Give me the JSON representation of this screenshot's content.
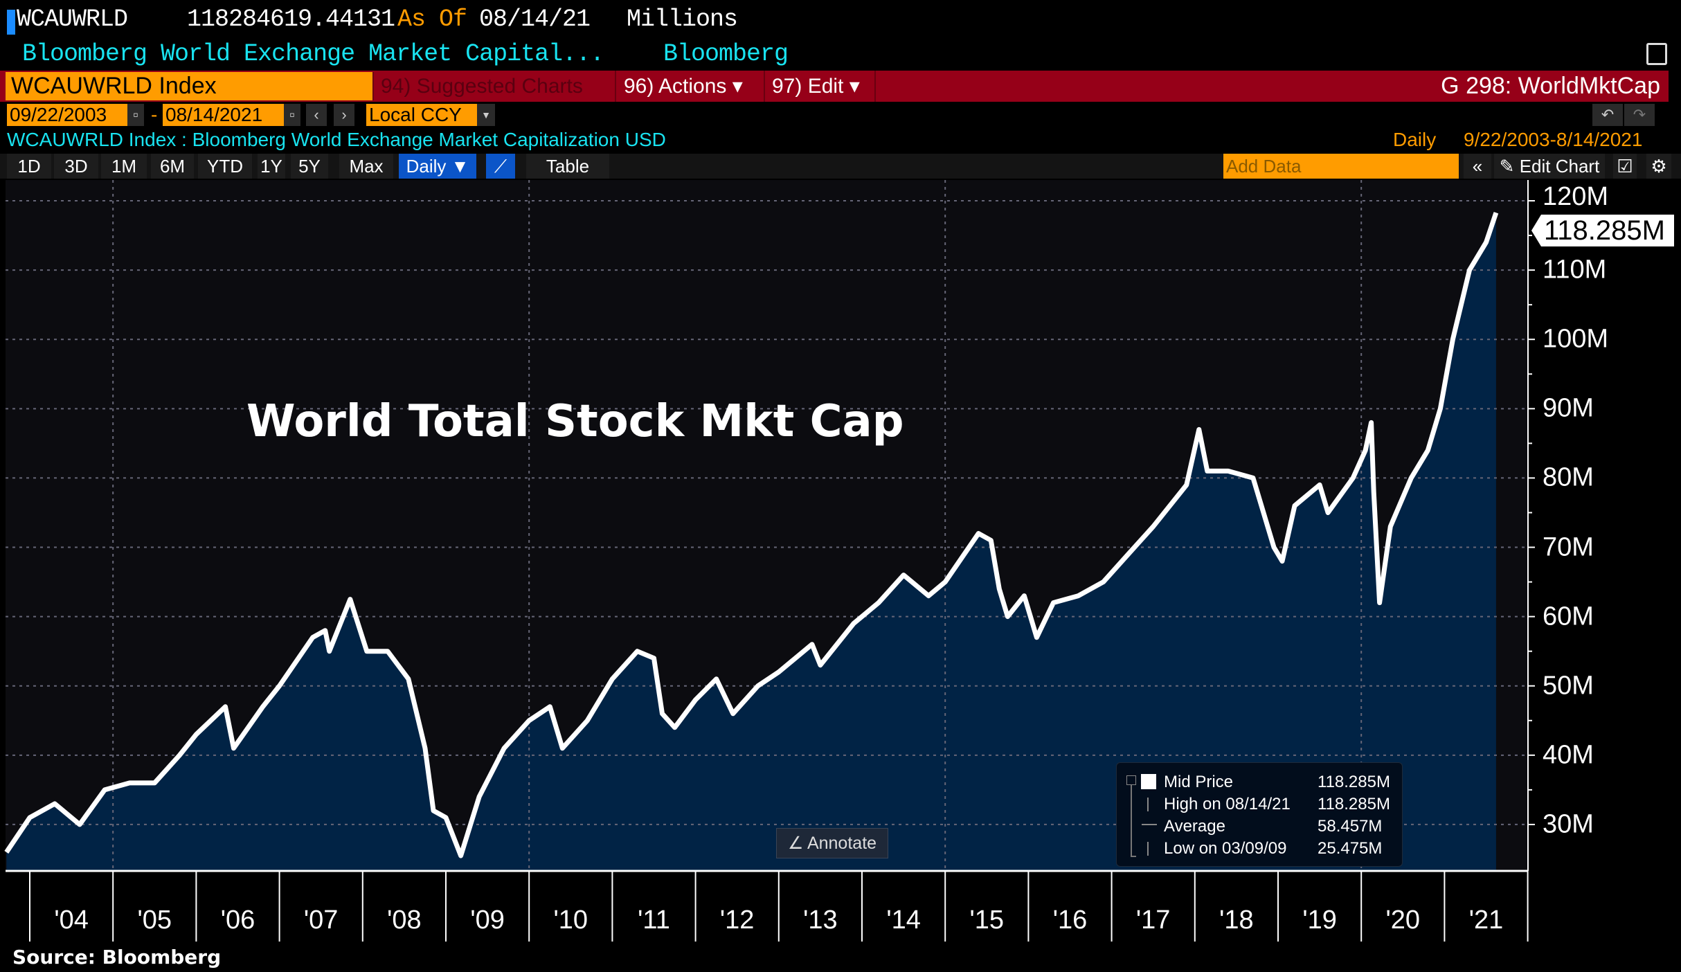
{
  "header": {
    "ticker": "WCAUWRLD",
    "value": "118284619.44131",
    "as_of_label": "As Of",
    "as_of_date": "08/14/21",
    "units": "Millions",
    "name": "Bloomberg World Exchange Market Capital...",
    "source": "Bloomberg"
  },
  "command_bar": {
    "security": "WCAUWRLD Index",
    "suggested": "94) Suggested Charts",
    "actions": "96) Actions ▾",
    "edit": "97) Edit ▾",
    "chart_id": "G 298: WorldMktCap"
  },
  "date_bar": {
    "start": "09/22/2003",
    "separator": "-",
    "end": "08/14/2021",
    "currency": "Local CCY"
  },
  "subtitle": {
    "left": "WCAUWRLD Index : Bloomberg World Exchange Market Capitalization USD",
    "frequency": "Daily",
    "range": "9/22/2003-8/14/2021"
  },
  "toolbar": {
    "periods": [
      "1D",
      "3D",
      "1M",
      "6M",
      "YTD",
      "1Y",
      "5Y",
      "Max"
    ],
    "frequency": "Daily ▼",
    "table": "Table",
    "add_data_placeholder": "Add Data",
    "edit_chart": "Edit Chart"
  },
  "annotate_label": "Annotate",
  "footer_source": "Source: Bloomberg",
  "colors": {
    "line": "#ffffff",
    "area": "#012345",
    "plot_bg": "#0c0c10",
    "accent_orange": "#ff9c00",
    "bar_red": "#960018",
    "cyan": "#19e3f0"
  },
  "chart_data": {
    "type": "area",
    "title": "World Total Stock Mkt Cap",
    "xlim": [
      2003.72,
      2022.0
    ],
    "ylim": [
      23.3,
      123
    ],
    "yticks": [
      30,
      40,
      50,
      60,
      70,
      80,
      90,
      100,
      110,
      120
    ],
    "ytick_labels": [
      "30M",
      "40M",
      "50M",
      "60M",
      "70M",
      "80M",
      "90M",
      "100M",
      "110M",
      "120M"
    ],
    "xtick_labels": [
      "'04",
      "'05",
      "'06",
      "'07",
      "'08",
      "'09",
      "'10",
      "'11",
      "'12",
      "'13",
      "'14",
      "'15",
      "'16",
      "'17",
      "'18",
      "'19",
      "'20",
      "'21"
    ],
    "grid": true,
    "last_value_label": "118.285M",
    "series": [
      {
        "x": [
          2003.72,
          2004.0,
          2004.3,
          2004.6,
          2004.9,
          2005.2,
          2005.5,
          2005.8,
          2006.0,
          2006.35,
          2006.45,
          2006.8,
          2007.0,
          2007.4,
          2007.55,
          2007.6,
          2007.85,
          2008.05,
          2008.3,
          2008.55,
          2008.75,
          2008.85,
          2009.0,
          2009.18,
          2009.4,
          2009.7,
          2010.0,
          2010.25,
          2010.4,
          2010.7,
          2011.0,
          2011.3,
          2011.5,
          2011.6,
          2011.75,
          2012.0,
          2012.25,
          2012.45,
          2012.75,
          2013.0,
          2013.4,
          2013.5,
          2013.9,
          2014.2,
          2014.5,
          2014.8,
          2015.0,
          2015.4,
          2015.55,
          2015.65,
          2015.75,
          2015.95,
          2016.1,
          2016.3,
          2016.6,
          2016.9,
          2017.2,
          2017.5,
          2017.9,
          2018.05,
          2018.15,
          2018.4,
          2018.7,
          2018.95,
          2019.05,
          2019.2,
          2019.5,
          2019.6,
          2019.9,
          2020.05,
          2020.12,
          2020.15,
          2020.22,
          2020.35,
          2020.6,
          2020.8,
          2020.95,
          2021.1,
          2021.3,
          2021.5,
          2021.62
        ],
        "y": [
          26,
          31,
          33,
          30,
          35,
          36,
          36,
          40,
          43,
          47,
          41,
          47,
          50,
          57,
          58,
          55,
          62.5,
          55,
          55,
          51,
          41,
          32,
          31,
          25.5,
          34,
          41,
          45,
          47,
          41,
          45,
          51,
          55,
          54,
          46,
          44,
          48,
          51,
          46,
          50,
          52,
          56,
          53,
          59,
          62,
          66,
          63,
          65,
          72,
          71,
          64,
          60,
          63,
          57,
          62,
          63,
          65,
          69,
          73,
          79,
          87,
          81,
          81,
          80,
          70,
          68,
          76,
          79,
          75,
          80,
          84,
          88,
          78,
          62,
          73,
          80,
          84,
          90,
          100,
          110,
          114,
          118.285
        ]
      }
    ]
  },
  "legend": {
    "rows": [
      {
        "label": "Mid Price",
        "value": "118.285M"
      },
      {
        "label": "High on 08/14/21",
        "value": "118.285M"
      },
      {
        "label": "Average",
        "value": "58.457M"
      },
      {
        "label": "Low on 03/09/09",
        "value": "25.475M"
      }
    ]
  }
}
